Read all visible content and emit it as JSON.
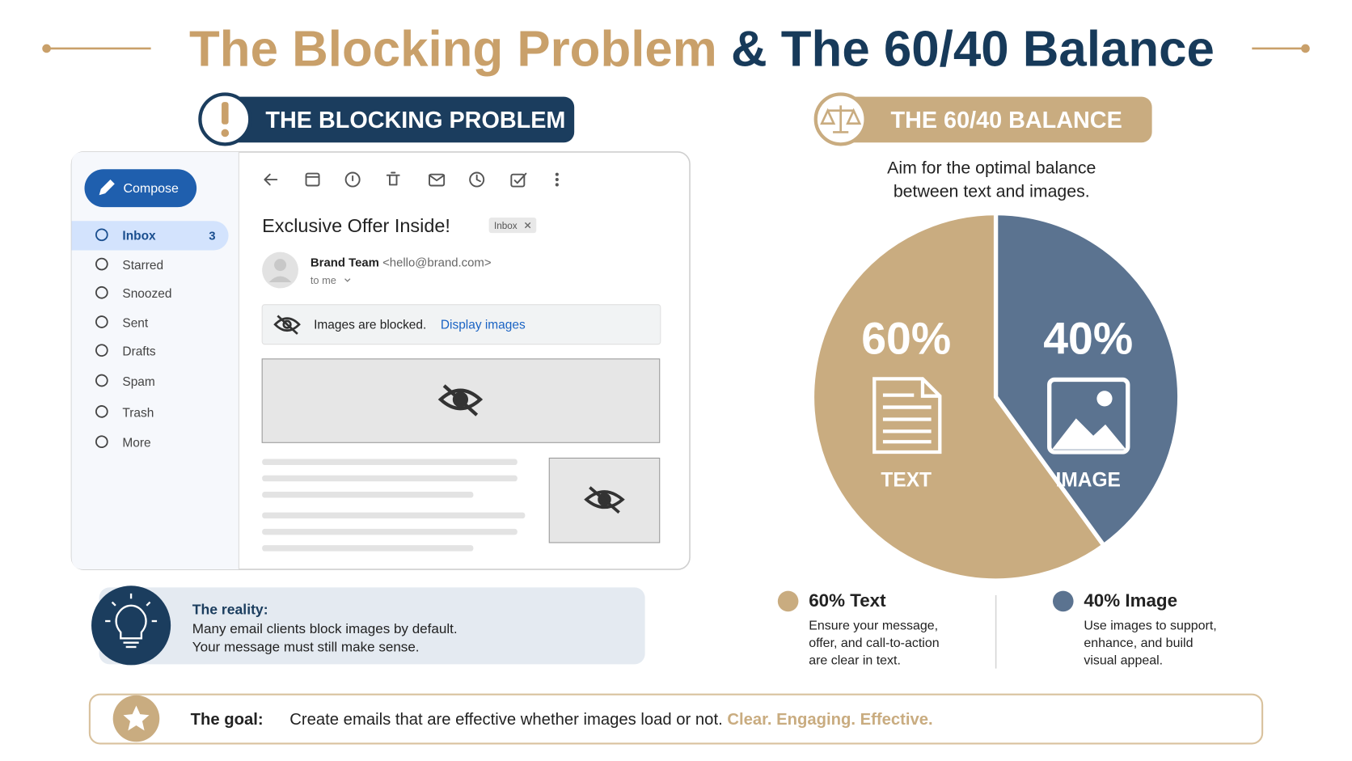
{
  "title": {
    "part1": "The Blocking Problem",
    "part2": "& The 60/40 Balance"
  },
  "blocking": {
    "badge": "THE BLOCKING PROBLEM",
    "email": {
      "compose": "Compose",
      "nav": [
        {
          "label": "Inbox",
          "count": 3
        },
        {
          "label": "Starred"
        },
        {
          "label": "Snoozed"
        },
        {
          "label": "Sent"
        },
        {
          "label": "Drafts"
        },
        {
          "label": "Spam"
        },
        {
          "label": "Trash"
        },
        {
          "label": "More"
        }
      ],
      "subject": "Exclusive Offer Inside!",
      "tag": "Inbox",
      "sender_name": "Brand Team",
      "sender_email": "<hello@brand.com>",
      "recipient": "to me",
      "banner": "Images are blocked.",
      "banner_action": "Display images"
    },
    "reality": {
      "heading": "The reality:",
      "lines": [
        "Many email clients block images by default.",
        "Your message must still make sense."
      ]
    }
  },
  "balance": {
    "badge": "THE 60/40 BALANCE",
    "subtitle": [
      "Aim for the optimal balance",
      "between text and images."
    ],
    "legend": [
      {
        "title": "60% Text",
        "description": [
          "Ensure your message,",
          "offer, and call-to-action",
          "are clear in text."
        ]
      },
      {
        "title": "40% Image",
        "description": [
          "Use images to support,",
          "enhance, and build",
          "visual appeal."
        ]
      }
    ]
  },
  "chart_data": {
    "type": "pie",
    "categories": [
      "TEXT",
      "IMAGE"
    ],
    "values": [
      60,
      40
    ],
    "value_labels": [
      "60%",
      "40%"
    ],
    "colors": [
      "#c9ac80",
      "#5b7390"
    ],
    "startangle": 90,
    "counterclock": true
  },
  "goal": {
    "label": "The goal:",
    "text": "Create emails that are effective whether images load or not.",
    "tagline": "Clear. Engaging. Effective."
  }
}
